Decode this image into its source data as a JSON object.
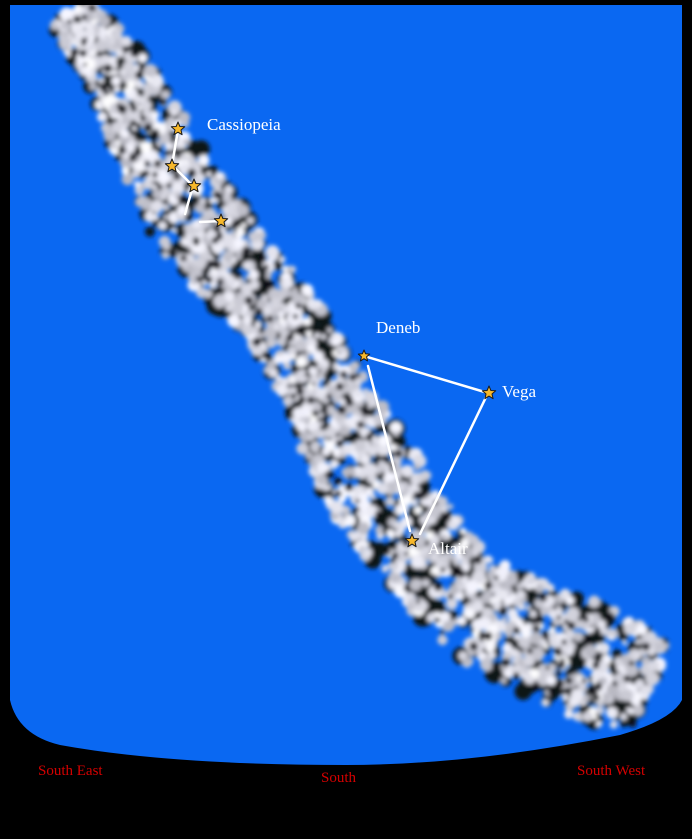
{
  "colors": {
    "sky": "#0a68f2",
    "ground": "#000000",
    "star_fill": "#f7b82b",
    "line": "#ffffff",
    "label": "#ffffff",
    "direction_label": "#d40000"
  },
  "stars": {
    "cas_1": {
      "label": ""
    },
    "cas_2": {
      "label": ""
    },
    "cas_3": {
      "label": ""
    },
    "cas_4": {
      "label": ""
    },
    "deneb": {
      "label": "Deneb"
    },
    "vega": {
      "label": "Vega"
    },
    "altair": {
      "label": "Altair"
    }
  },
  "constellations": {
    "cassiopeia": "Cassiopeia"
  },
  "horizon": {
    "south_east": "South East",
    "south": "South",
    "south_west": "South West"
  }
}
